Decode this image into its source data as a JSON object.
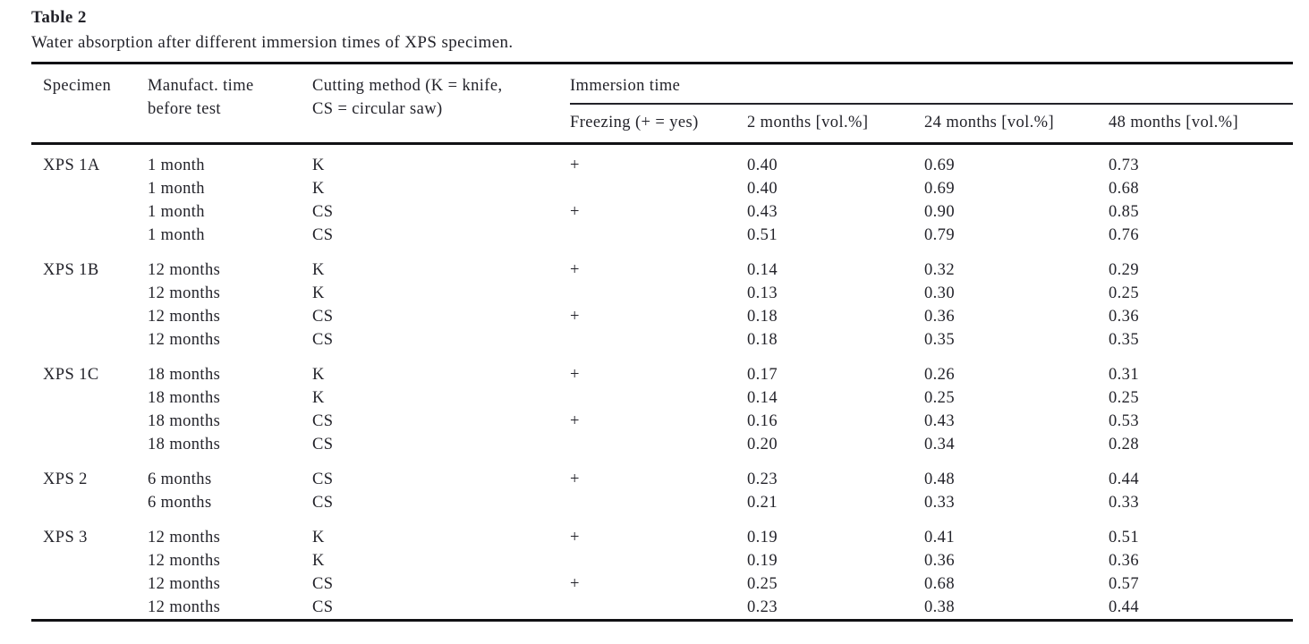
{
  "colors": {
    "background": "#ffffff",
    "text": "#23232a",
    "rule": "#111114"
  },
  "table": {
    "label": "Table 2",
    "caption": "Water absorption after different immersion times of XPS specimen.",
    "columns": {
      "specimen": "Specimen",
      "manufact_time_line1": "Manufact. time",
      "manufact_time_line2": "before test",
      "cutting_method_line1": "Cutting method (K = knife,",
      "cutting_method_line2": "CS = circular saw)",
      "immersion_group": "Immersion time",
      "freezing": "Freezing (+ = yes)",
      "months2": "2 months [vol.%]",
      "months24": "24 months [vol.%]",
      "months48": "48 months [vol.%]"
    },
    "groups": [
      {
        "specimen": "XPS 1A",
        "rows": [
          {
            "manufact_time": "1 month",
            "cutting_method": "K",
            "freezing": "+",
            "months2": "0.40",
            "months24": "0.69",
            "months48": "0.73"
          },
          {
            "manufact_time": "1 month",
            "cutting_method": "K",
            "freezing": "",
            "months2": "0.40",
            "months24": "0.69",
            "months48": "0.68"
          },
          {
            "manufact_time": "1 month",
            "cutting_method": "CS",
            "freezing": "+",
            "months2": "0.43",
            "months24": "0.90",
            "months48": "0.85"
          },
          {
            "manufact_time": "1 month",
            "cutting_method": "CS",
            "freezing": "",
            "months2": "0.51",
            "months24": "0.79",
            "months48": "0.76"
          }
        ]
      },
      {
        "specimen": "XPS 1B",
        "rows": [
          {
            "manufact_time": "12 months",
            "cutting_method": "K",
            "freezing": "+",
            "months2": "0.14",
            "months24": "0.32",
            "months48": "0.29"
          },
          {
            "manufact_time": "12 months",
            "cutting_method": "K",
            "freezing": "",
            "months2": "0.13",
            "months24": "0.30",
            "months48": "0.25"
          },
          {
            "manufact_time": "12 months",
            "cutting_method": "CS",
            "freezing": "+",
            "months2": "0.18",
            "months24": "0.36",
            "months48": "0.36"
          },
          {
            "manufact_time": "12 months",
            "cutting_method": "CS",
            "freezing": "",
            "months2": "0.18",
            "months24": "0.35",
            "months48": "0.35"
          }
        ]
      },
      {
        "specimen": "XPS 1C",
        "rows": [
          {
            "manufact_time": "18 months",
            "cutting_method": "K",
            "freezing": "+",
            "months2": "0.17",
            "months24": "0.26",
            "months48": "0.31"
          },
          {
            "manufact_time": "18 months",
            "cutting_method": "K",
            "freezing": "",
            "months2": "0.14",
            "months24": "0.25",
            "months48": "0.25"
          },
          {
            "manufact_time": "18 months",
            "cutting_method": "CS",
            "freezing": "+",
            "months2": "0.16",
            "months24": "0.43",
            "months48": "0.53"
          },
          {
            "manufact_time": "18 months",
            "cutting_method": "CS",
            "freezing": "",
            "months2": "0.20",
            "months24": "0.34",
            "months48": "0.28"
          }
        ]
      },
      {
        "specimen": "XPS 2",
        "rows": [
          {
            "manufact_time": "6 months",
            "cutting_method": "CS",
            "freezing": "+",
            "months2": "0.23",
            "months24": "0.48",
            "months48": "0.44"
          },
          {
            "manufact_time": "6 months",
            "cutting_method": "CS",
            "freezing": "",
            "months2": "0.21",
            "months24": "0.33",
            "months48": "0.33"
          }
        ]
      },
      {
        "specimen": "XPS 3",
        "rows": [
          {
            "manufact_time": "12 months",
            "cutting_method": "K",
            "freezing": "+",
            "months2": "0.19",
            "months24": "0.41",
            "months48": "0.51"
          },
          {
            "manufact_time": "12 months",
            "cutting_method": "K",
            "freezing": "",
            "months2": "0.19",
            "months24": "0.36",
            "months48": "0.36"
          },
          {
            "manufact_time": "12 months",
            "cutting_method": "CS",
            "freezing": "+",
            "months2": "0.25",
            "months24": "0.68",
            "months48": "0.57"
          },
          {
            "manufact_time": "12 months",
            "cutting_method": "CS",
            "freezing": "",
            "months2": "0.23",
            "months24": "0.38",
            "months48": "0.44"
          }
        ]
      }
    ]
  }
}
